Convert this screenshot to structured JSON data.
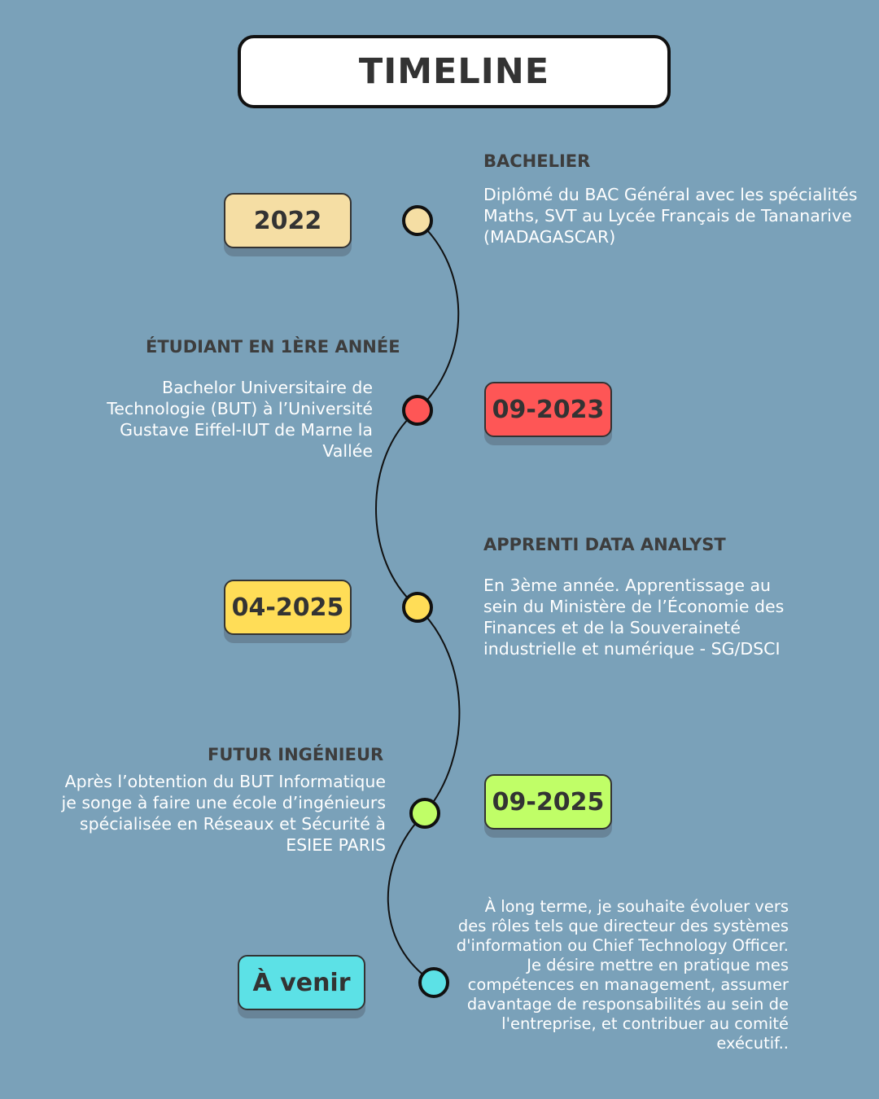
{
  "title": "TIMELINE",
  "colors": {
    "background": "#7aa1b9",
    "beige": "#f5dea4",
    "red": "#fe5656",
    "yellow": "#ffdd57",
    "lime": "#c0fe67",
    "cyan": "#5ce1e6"
  },
  "events": [
    {
      "date": "2022",
      "heading": "BACHELIER",
      "description": "Diplômé du BAC Général avec les spécialités Maths, SVT au Lycée Français de Tananarive (MADAGASCAR)"
    },
    {
      "date": "09-2023",
      "heading": "ÉTUDIANT EN 1ÈRE ANNÉE",
      "description": "Bachelor Universitaire de Technologie (BUT) à l’Université Gustave Eiffel-IUT de Marne la Vallée"
    },
    {
      "date": "04-2025",
      "heading": "APPRENTI DATA ANALYST",
      "description": "En 3ème année. Apprentissage au sein du Ministère de l’Économie des Finances et de la Souveraineté industrielle et numérique - SG/DSCI"
    },
    {
      "date": "09-2025",
      "heading": "FUTUR INGÉNIEUR",
      "description": "Après l’obtention du BUT Informatique je songe à faire une école d’ingénieurs spécialisée en Réseaux et Sécurité à ESIEE PARIS"
    },
    {
      "date": "À venir",
      "heading": "",
      "description": "À long terme, je souhaite évoluer vers des rôles tels que directeur des systèmes d'information ou Chief Technology Officer. Je désire mettre en pratique mes compétences en management, assumer davantage de responsabilités au sein de l'entreprise, et contribuer au comité exécutif.."
    }
  ]
}
